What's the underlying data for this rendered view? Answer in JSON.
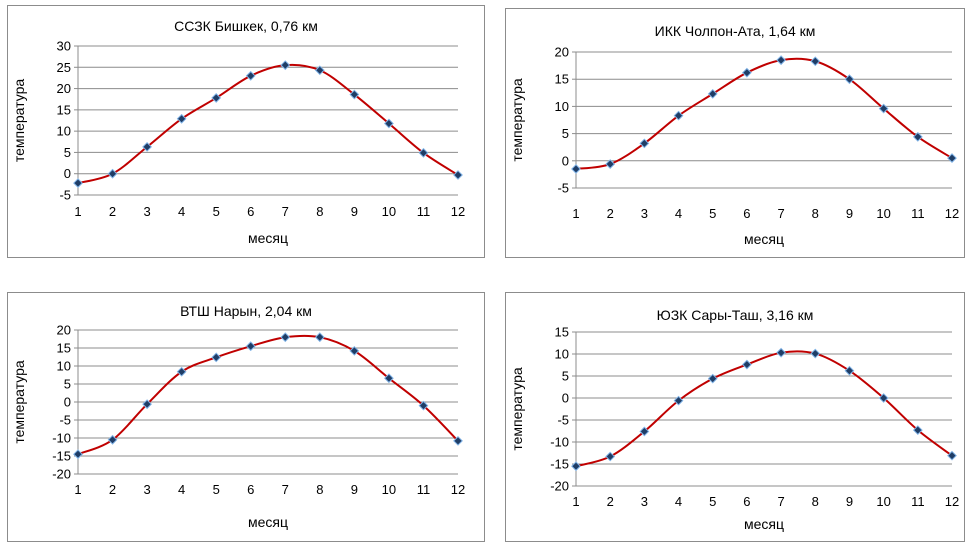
{
  "chart_data": [
    {
      "type": "line",
      "title": "ССЗК Бишкек,  0,76 км",
      "xlabel": "месяц",
      "ylabel": "температура",
      "categories": [
        "1",
        "2",
        "3",
        "4",
        "5",
        "6",
        "7",
        "8",
        "9",
        "10",
        "11",
        "12"
      ],
      "values": [
        -2.2,
        0,
        6.3,
        12.9,
        17.8,
        23.0,
        25.5,
        24.3,
        18.6,
        11.8,
        4.9,
        -0.3
      ],
      "ylim": [
        -5,
        30
      ],
      "yticks": [
        30,
        25,
        20,
        15,
        10,
        5,
        0,
        -5
      ],
      "grid": true,
      "line_color": "#c00000",
      "marker_color": "#1f3d66"
    },
    {
      "type": "line",
      "title": "ИКК Чолпон-Ата,  1,64 км",
      "xlabel": "месяц",
      "ylabel": "температура",
      "categories": [
        "1",
        "2",
        "3",
        "4",
        "5",
        "6",
        "7",
        "8",
        "9",
        "10",
        "11",
        "12"
      ],
      "values": [
        -1.5,
        -0.6,
        3.2,
        8.3,
        12.3,
        16.2,
        18.5,
        18.3,
        15.0,
        9.6,
        4.4,
        0.5
      ],
      "ylim": [
        -5,
        20
      ],
      "yticks": [
        20,
        15,
        10,
        5,
        0,
        -5
      ],
      "grid": true,
      "line_color": "#c00000",
      "marker_color": "#1f3d66"
    },
    {
      "type": "line",
      "title": "ВТШ Нарын,  2,04 км",
      "xlabel": "месяц",
      "ylabel": "температура",
      "categories": [
        "1",
        "2",
        "3",
        "4",
        "5",
        "6",
        "7",
        "8",
        "9",
        "10",
        "11",
        "12"
      ],
      "values": [
        -14.5,
        -10.5,
        -0.6,
        8.4,
        12.4,
        15.5,
        18.0,
        18.0,
        14.2,
        6.6,
        -1.0,
        -10.8
      ],
      "ylim": [
        -20,
        20
      ],
      "yticks": [
        20,
        15,
        10,
        5,
        0,
        -5,
        -10,
        -15,
        -20
      ],
      "grid": true,
      "line_color": "#c00000",
      "marker_color": "#1f3d66"
    },
    {
      "type": "line",
      "title": "ЮЗК Сары-Таш,  3,16 км",
      "xlabel": "месяц",
      "ylabel": "температура",
      "categories": [
        "1",
        "2",
        "3",
        "4",
        "5",
        "6",
        "7",
        "8",
        "9",
        "10",
        "11",
        "12"
      ],
      "values": [
        -15.5,
        -13.3,
        -7.6,
        -0.6,
        4.4,
        7.6,
        10.3,
        10.1,
        6.2,
        0,
        -7.3,
        -13.1
      ],
      "ylim": [
        -20,
        15
      ],
      "yticks": [
        15,
        10,
        5,
        0,
        -5,
        -10,
        -15,
        -20
      ],
      "grid": true,
      "line_color": "#c00000",
      "marker_color": "#1f3d66"
    }
  ]
}
